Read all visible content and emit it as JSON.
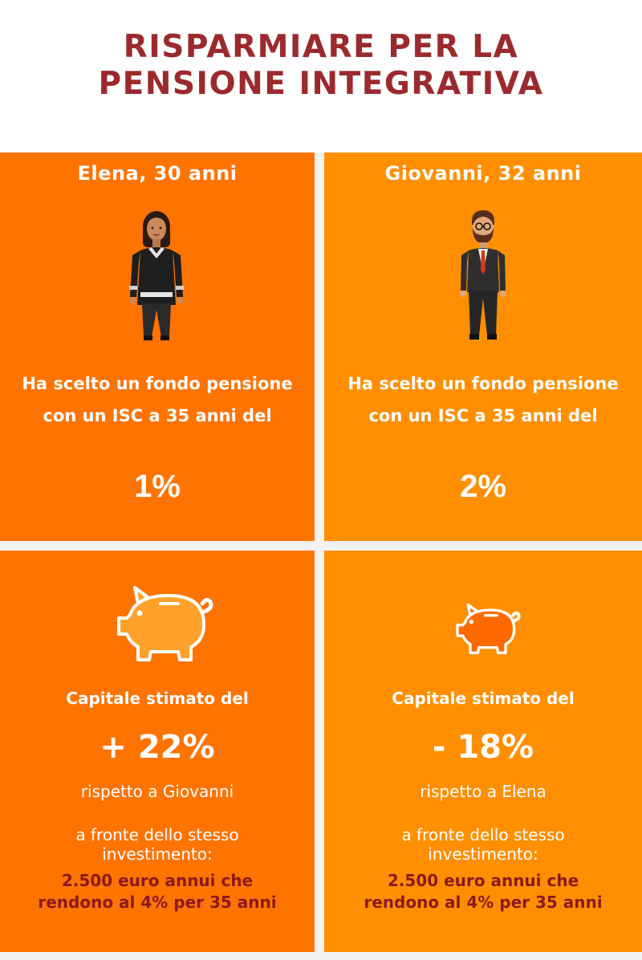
{
  "title": {
    "line1": "RISPARMIARE PER LA",
    "line2": "PENSIONE INTEGRATIVA"
  },
  "colors": {
    "title": "#9b2a2e",
    "panel_dark": "#ff7300",
    "panel_light": "#ff8f00",
    "investment_text": "#8a1a1a"
  },
  "elena": {
    "name": "Elena, 30 anni",
    "icon": "woman-icon",
    "desc_line1": "Ha scelto un fondo pensione",
    "desc_line2": "con un ISC a 35 anni del",
    "isc": "1%",
    "capital_label": "Capitale stimato del",
    "capital_value": "+ 22%",
    "compare": "rispetto a Giovanni",
    "front_line1": "a fronte dello stesso",
    "front_line2": "investimento:",
    "investment_line1": "2.500 euro annui che",
    "investment_line2": "rendono al 4% per 35 anni"
  },
  "giovanni": {
    "name": "Giovanni, 32 anni",
    "icon": "man-icon",
    "desc_line1": "Ha scelto un fondo pensione",
    "desc_line2": "con un ISC a 35 anni del",
    "isc": "2%",
    "capital_label": "Capitale stimato del",
    "capital_value": "- 18%",
    "compare": "rispetto a Elena",
    "front_line1": "a fronte dello stesso",
    "front_line2": "investimento:",
    "investment_line1": "2.500 euro annui che",
    "investment_line2": "rendono al 4% per 35 anni"
  }
}
